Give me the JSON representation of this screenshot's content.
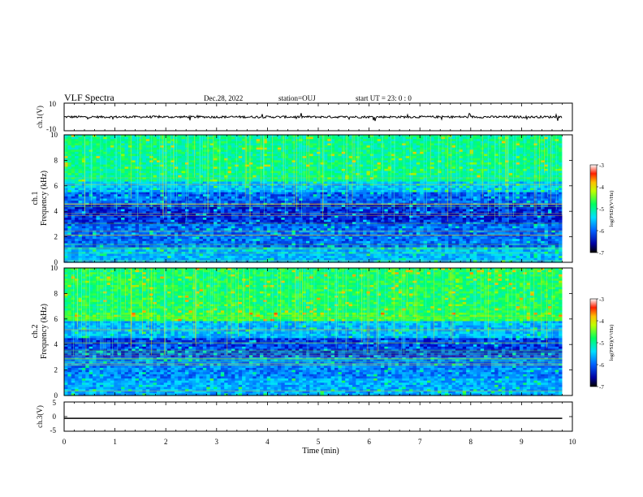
{
  "header": {
    "title": "VLF Spectra",
    "date": "Dec.28, 2022",
    "station": "station=OUJ",
    "start_ut": "start  UT =   23: 0  : 0"
  },
  "colors": {
    "waveform": "#000000",
    "colormap": [
      "#000080",
      "#0000ff",
      "#0080ff",
      "#00ffff",
      "#00ff80",
      "#80ff00",
      "#ffff00",
      "#ff8000",
      "#ff0000",
      "#ffffff"
    ]
  },
  "chart_data": [
    {
      "type": "line",
      "panel": "ch1-waveform",
      "ylabel": "ch.1(V)",
      "ylim": [
        -10,
        10
      ],
      "y_tick_labels": [
        "10",
        "-10"
      ],
      "xlim": [
        0,
        10
      ],
      "baseline_value": 0
    },
    {
      "type": "heatmap",
      "panel": "ch1-spectrogram",
      "ylabel": "ch.1\nFrequency  (kHz)",
      "ylim": [
        0,
        10
      ],
      "y_tick_labels": [
        "0",
        "2",
        "4",
        "6",
        "8",
        "10"
      ],
      "xlim": [
        0,
        10
      ],
      "colorbar": {
        "label": "log(PSD)(V²/Hz)",
        "range": [
          -7,
          -3
        ],
        "tick_labels": [
          "-3",
          "-4",
          "-5",
          "-6",
          "-7"
        ]
      }
    },
    {
      "type": "heatmap",
      "panel": "ch2-spectrogram",
      "ylabel": "ch.2\nFrequency  (kHz)",
      "ylim": [
        0,
        10
      ],
      "y_tick_labels": [
        "0",
        "2",
        "4",
        "6",
        "8",
        "10"
      ],
      "xlim": [
        0,
        10
      ],
      "colorbar": {
        "label": "log(PSD)(V²/Hz)",
        "range": [
          -7,
          -3
        ],
        "tick_labels": [
          "-3",
          "-4",
          "-5",
          "-6",
          "-7"
        ]
      }
    },
    {
      "type": "line",
      "panel": "ch3-waveform",
      "ylabel": "ch.3(V)",
      "ylim": [
        -5,
        5
      ],
      "y_tick_labels": [
        "5",
        "0",
        "-5"
      ],
      "xlim": [
        0,
        10
      ],
      "x": [
        0,
        9.8
      ],
      "values": [
        -0.6,
        -0.6
      ],
      "x_tick_labels": [
        "0",
        "1",
        "2",
        "3",
        "4",
        "5",
        "6",
        "7",
        "8",
        "9",
        "10"
      ],
      "xlabel": "Time  (min)"
    }
  ]
}
